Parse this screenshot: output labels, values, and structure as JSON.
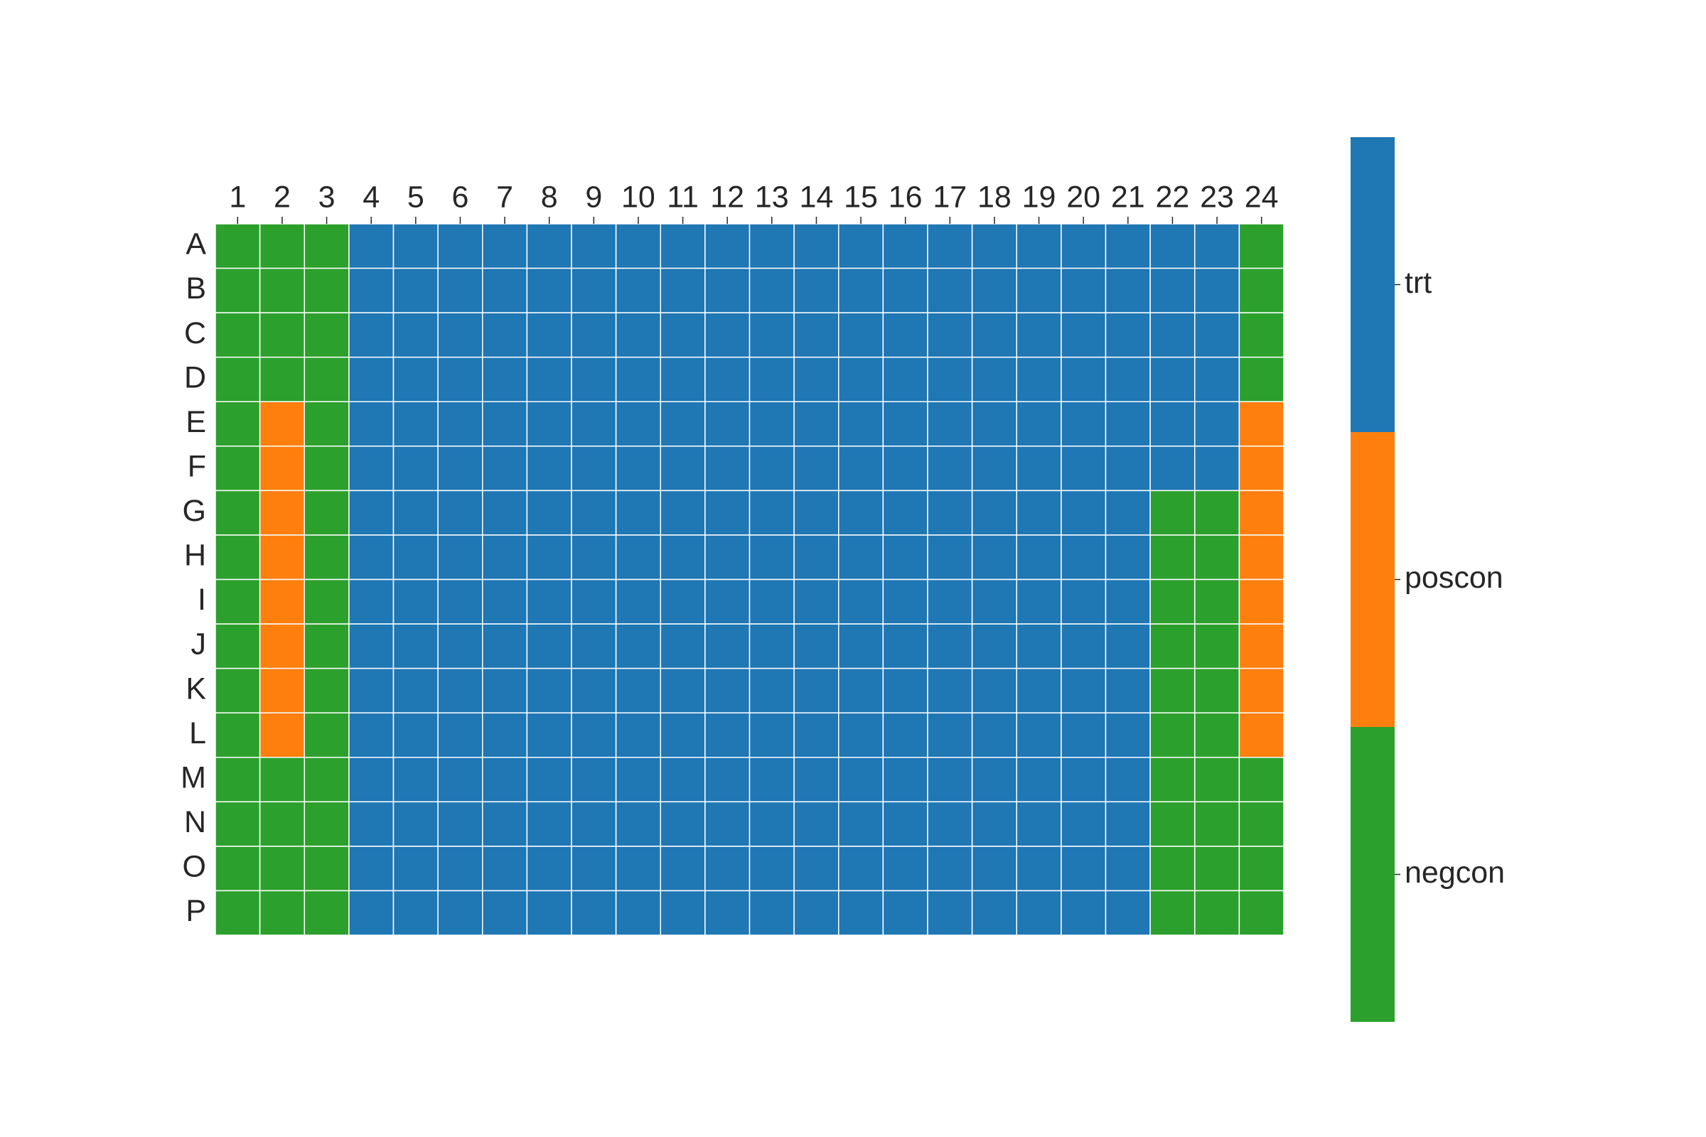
{
  "chart_data": {
    "type": "heatmap",
    "x": [
      1,
      2,
      3,
      4,
      5,
      6,
      7,
      8,
      9,
      10,
      11,
      12,
      13,
      14,
      15,
      16,
      17,
      18,
      19,
      20,
      21,
      22,
      23,
      24
    ],
    "y": [
      "A",
      "B",
      "C",
      "D",
      "E",
      "F",
      "G",
      "H",
      "I",
      "J",
      "K",
      "L",
      "M",
      "N",
      "O",
      "P"
    ],
    "legend": [
      {
        "name": "trt",
        "color": "#1f77b4"
      },
      {
        "name": "poscon",
        "color": "#ff7f0e"
      },
      {
        "name": "negcon",
        "color": "#2ca02c"
      }
    ],
    "values": [
      [
        "negcon",
        "negcon",
        "negcon",
        "trt",
        "trt",
        "trt",
        "trt",
        "trt",
        "trt",
        "trt",
        "trt",
        "trt",
        "trt",
        "trt",
        "trt",
        "trt",
        "trt",
        "trt",
        "trt",
        "trt",
        "trt",
        "trt",
        "trt",
        "negcon"
      ],
      [
        "negcon",
        "negcon",
        "negcon",
        "trt",
        "trt",
        "trt",
        "trt",
        "trt",
        "trt",
        "trt",
        "trt",
        "trt",
        "trt",
        "trt",
        "trt",
        "trt",
        "trt",
        "trt",
        "trt",
        "trt",
        "trt",
        "trt",
        "trt",
        "negcon"
      ],
      [
        "negcon",
        "negcon",
        "negcon",
        "trt",
        "trt",
        "trt",
        "trt",
        "trt",
        "trt",
        "trt",
        "trt",
        "trt",
        "trt",
        "trt",
        "trt",
        "trt",
        "trt",
        "trt",
        "trt",
        "trt",
        "trt",
        "trt",
        "trt",
        "negcon"
      ],
      [
        "negcon",
        "negcon",
        "negcon",
        "trt",
        "trt",
        "trt",
        "trt",
        "trt",
        "trt",
        "trt",
        "trt",
        "trt",
        "trt",
        "trt",
        "trt",
        "trt",
        "trt",
        "trt",
        "trt",
        "trt",
        "trt",
        "trt",
        "trt",
        "negcon"
      ],
      [
        "negcon",
        "poscon",
        "negcon",
        "trt",
        "trt",
        "trt",
        "trt",
        "trt",
        "trt",
        "trt",
        "trt",
        "trt",
        "trt",
        "trt",
        "trt",
        "trt",
        "trt",
        "trt",
        "trt",
        "trt",
        "trt",
        "trt",
        "trt",
        "poscon"
      ],
      [
        "negcon",
        "poscon",
        "negcon",
        "trt",
        "trt",
        "trt",
        "trt",
        "trt",
        "trt",
        "trt",
        "trt",
        "trt",
        "trt",
        "trt",
        "trt",
        "trt",
        "trt",
        "trt",
        "trt",
        "trt",
        "trt",
        "trt",
        "trt",
        "poscon"
      ],
      [
        "negcon",
        "poscon",
        "negcon",
        "trt",
        "trt",
        "trt",
        "trt",
        "trt",
        "trt",
        "trt",
        "trt",
        "trt",
        "trt",
        "trt",
        "trt",
        "trt",
        "trt",
        "trt",
        "trt",
        "trt",
        "trt",
        "negcon",
        "negcon",
        "poscon"
      ],
      [
        "negcon",
        "poscon",
        "negcon",
        "trt",
        "trt",
        "trt",
        "trt",
        "trt",
        "trt",
        "trt",
        "trt",
        "trt",
        "trt",
        "trt",
        "trt",
        "trt",
        "trt",
        "trt",
        "trt",
        "trt",
        "trt",
        "negcon",
        "negcon",
        "poscon"
      ],
      [
        "negcon",
        "poscon",
        "negcon",
        "trt",
        "trt",
        "trt",
        "trt",
        "trt",
        "trt",
        "trt",
        "trt",
        "trt",
        "trt",
        "trt",
        "trt",
        "trt",
        "trt",
        "trt",
        "trt",
        "trt",
        "trt",
        "negcon",
        "negcon",
        "poscon"
      ],
      [
        "negcon",
        "poscon",
        "negcon",
        "trt",
        "trt",
        "trt",
        "trt",
        "trt",
        "trt",
        "trt",
        "trt",
        "trt",
        "trt",
        "trt",
        "trt",
        "trt",
        "trt",
        "trt",
        "trt",
        "trt",
        "trt",
        "negcon",
        "negcon",
        "poscon"
      ],
      [
        "negcon",
        "poscon",
        "negcon",
        "trt",
        "trt",
        "trt",
        "trt",
        "trt",
        "trt",
        "trt",
        "trt",
        "trt",
        "trt",
        "trt",
        "trt",
        "trt",
        "trt",
        "trt",
        "trt",
        "trt",
        "trt",
        "negcon",
        "negcon",
        "poscon"
      ],
      [
        "negcon",
        "poscon",
        "negcon",
        "trt",
        "trt",
        "trt",
        "trt",
        "trt",
        "trt",
        "trt",
        "trt",
        "trt",
        "trt",
        "trt",
        "trt",
        "trt",
        "trt",
        "trt",
        "trt",
        "trt",
        "trt",
        "negcon",
        "negcon",
        "poscon"
      ],
      [
        "negcon",
        "negcon",
        "negcon",
        "trt",
        "trt",
        "trt",
        "trt",
        "trt",
        "trt",
        "trt",
        "trt",
        "trt",
        "trt",
        "trt",
        "trt",
        "trt",
        "trt",
        "trt",
        "trt",
        "trt",
        "trt",
        "negcon",
        "negcon",
        "negcon"
      ],
      [
        "negcon",
        "negcon",
        "negcon",
        "trt",
        "trt",
        "trt",
        "trt",
        "trt",
        "trt",
        "trt",
        "trt",
        "trt",
        "trt",
        "trt",
        "trt",
        "trt",
        "trt",
        "trt",
        "trt",
        "trt",
        "trt",
        "negcon",
        "negcon",
        "negcon"
      ],
      [
        "negcon",
        "negcon",
        "negcon",
        "trt",
        "trt",
        "trt",
        "trt",
        "trt",
        "trt",
        "trt",
        "trt",
        "trt",
        "trt",
        "trt",
        "trt",
        "trt",
        "trt",
        "trt",
        "trt",
        "trt",
        "trt",
        "negcon",
        "negcon",
        "negcon"
      ],
      [
        "negcon",
        "negcon",
        "negcon",
        "trt",
        "trt",
        "trt",
        "trt",
        "trt",
        "trt",
        "trt",
        "trt",
        "trt",
        "trt",
        "trt",
        "trt",
        "trt",
        "trt",
        "trt",
        "trt",
        "trt",
        "trt",
        "negcon",
        "negcon",
        "negcon"
      ]
    ]
  }
}
